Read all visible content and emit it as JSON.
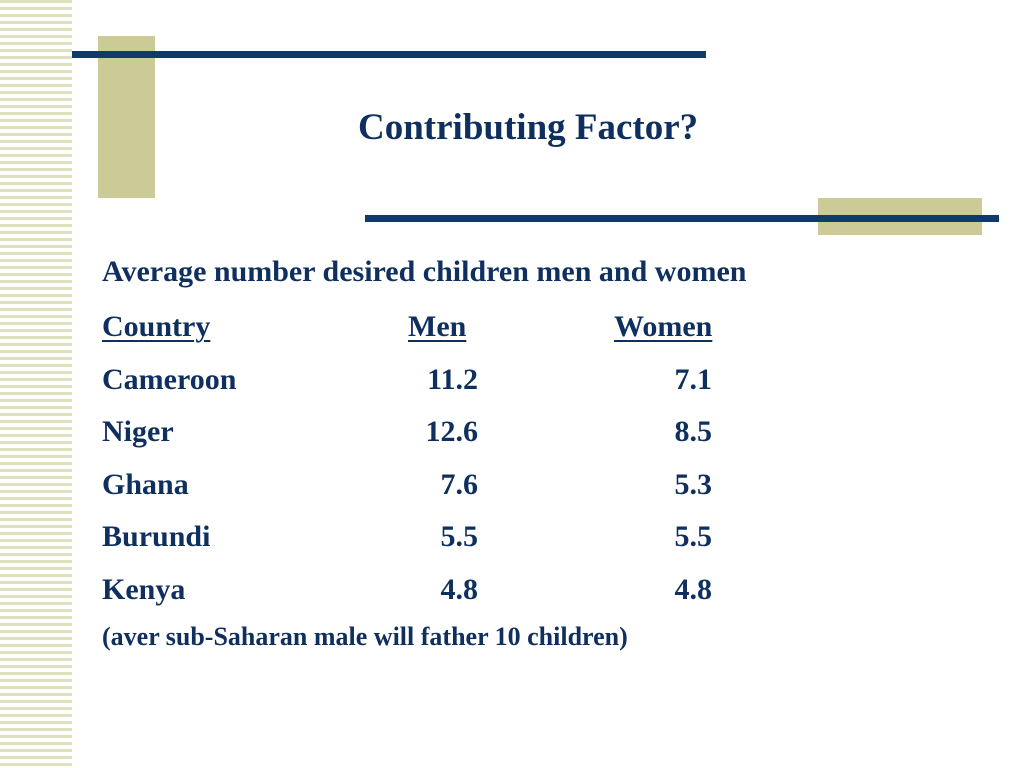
{
  "slide": {
    "title": "Contributing Factor?",
    "subtitle": "Average number desired children men and women",
    "table": {
      "headers": {
        "country": "Country",
        "men": "Men",
        "women": "Women"
      },
      "rows": [
        {
          "country": "Cameroon",
          "men": "11.2",
          "women": "7.1"
        },
        {
          "country": "Niger",
          "men": "12.6",
          "women": "8.5"
        },
        {
          "country": "Ghana",
          "men": "7.6",
          "women": "5.3"
        },
        {
          "country": "Burundi",
          "men": "5.5",
          "women": "5.5"
        },
        {
          "country": "Kenya",
          "men": "4.8",
          "women": "4.8"
        }
      ]
    },
    "note": "(aver sub-Saharan male will father 10 children)"
  },
  "colors": {
    "text": "#0f2f5e",
    "rule": "#0f3a6b",
    "accent_block": "#cccb98",
    "stripe": "#dfe0bd"
  }
}
